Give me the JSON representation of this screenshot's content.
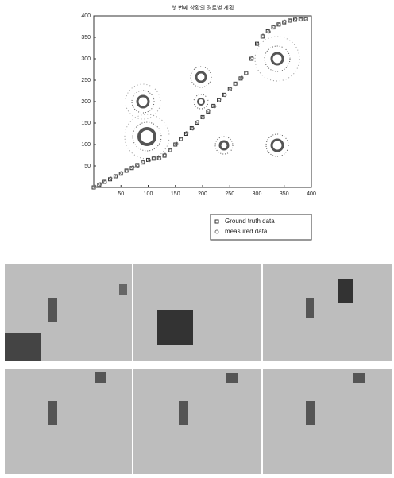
{
  "chart_data": {
    "type": "scatter",
    "title": "첫 번째 상황의 경로별 계획",
    "xlim": [
      0,
      400
    ],
    "ylim": [
      0,
      400
    ],
    "xticks": [
      50,
      100,
      150,
      200,
      250,
      300,
      350,
      400
    ],
    "yticks": [
      50,
      100,
      150,
      200,
      250,
      300,
      350,
      400
    ],
    "legend": "bottom-right",
    "series": [
      {
        "name": "Ground truth data",
        "color": "#333333",
        "marker": "square",
        "x": [
          0,
          10,
          20,
          30,
          40,
          50,
          60,
          70,
          80,
          90,
          100,
          110,
          120,
          130,
          140,
          150,
          160,
          170,
          180,
          190,
          200,
          210,
          220,
          230,
          240,
          250,
          260,
          270,
          280,
          290,
          300,
          310,
          320,
          330,
          340,
          350,
          360,
          370,
          380,
          390
        ],
        "values": [
          0,
          6,
          13,
          19,
          26,
          32,
          39,
          45,
          52,
          58,
          64,
          67,
          68,
          74,
          87,
          100,
          113,
          125,
          138,
          151,
          164,
          177,
          190,
          203,
          216,
          229,
          242,
          254,
          267,
          300,
          335,
          352,
          364,
          373,
          380,
          385,
          389,
          391,
          392,
          392
        ]
      },
      {
        "name": "measured data",
        "color": "#777777",
        "marker": "circle",
        "x": [
          2,
          12,
          21,
          31,
          42,
          51,
          61,
          72,
          81,
          91,
          102,
          111,
          121,
          131,
          141,
          152,
          161,
          171,
          182,
          191,
          201,
          211,
          222,
          231,
          241,
          251,
          261,
          272,
          281,
          291,
          301,
          311,
          322,
          331,
          341,
          351,
          361,
          371,
          381,
          389
        ],
        "values": [
          2,
          8,
          12,
          21,
          25,
          34,
          38,
          47,
          50,
          60,
          63,
          69,
          67,
          76,
          86,
          102,
          112,
          127,
          137,
          153,
          163,
          179,
          189,
          205,
          215,
          231,
          241,
          256,
          266,
          302,
          334,
          354,
          363,
          375,
          379,
          387,
          388,
          393,
          391,
          394
        ]
      }
    ]
  }
}
